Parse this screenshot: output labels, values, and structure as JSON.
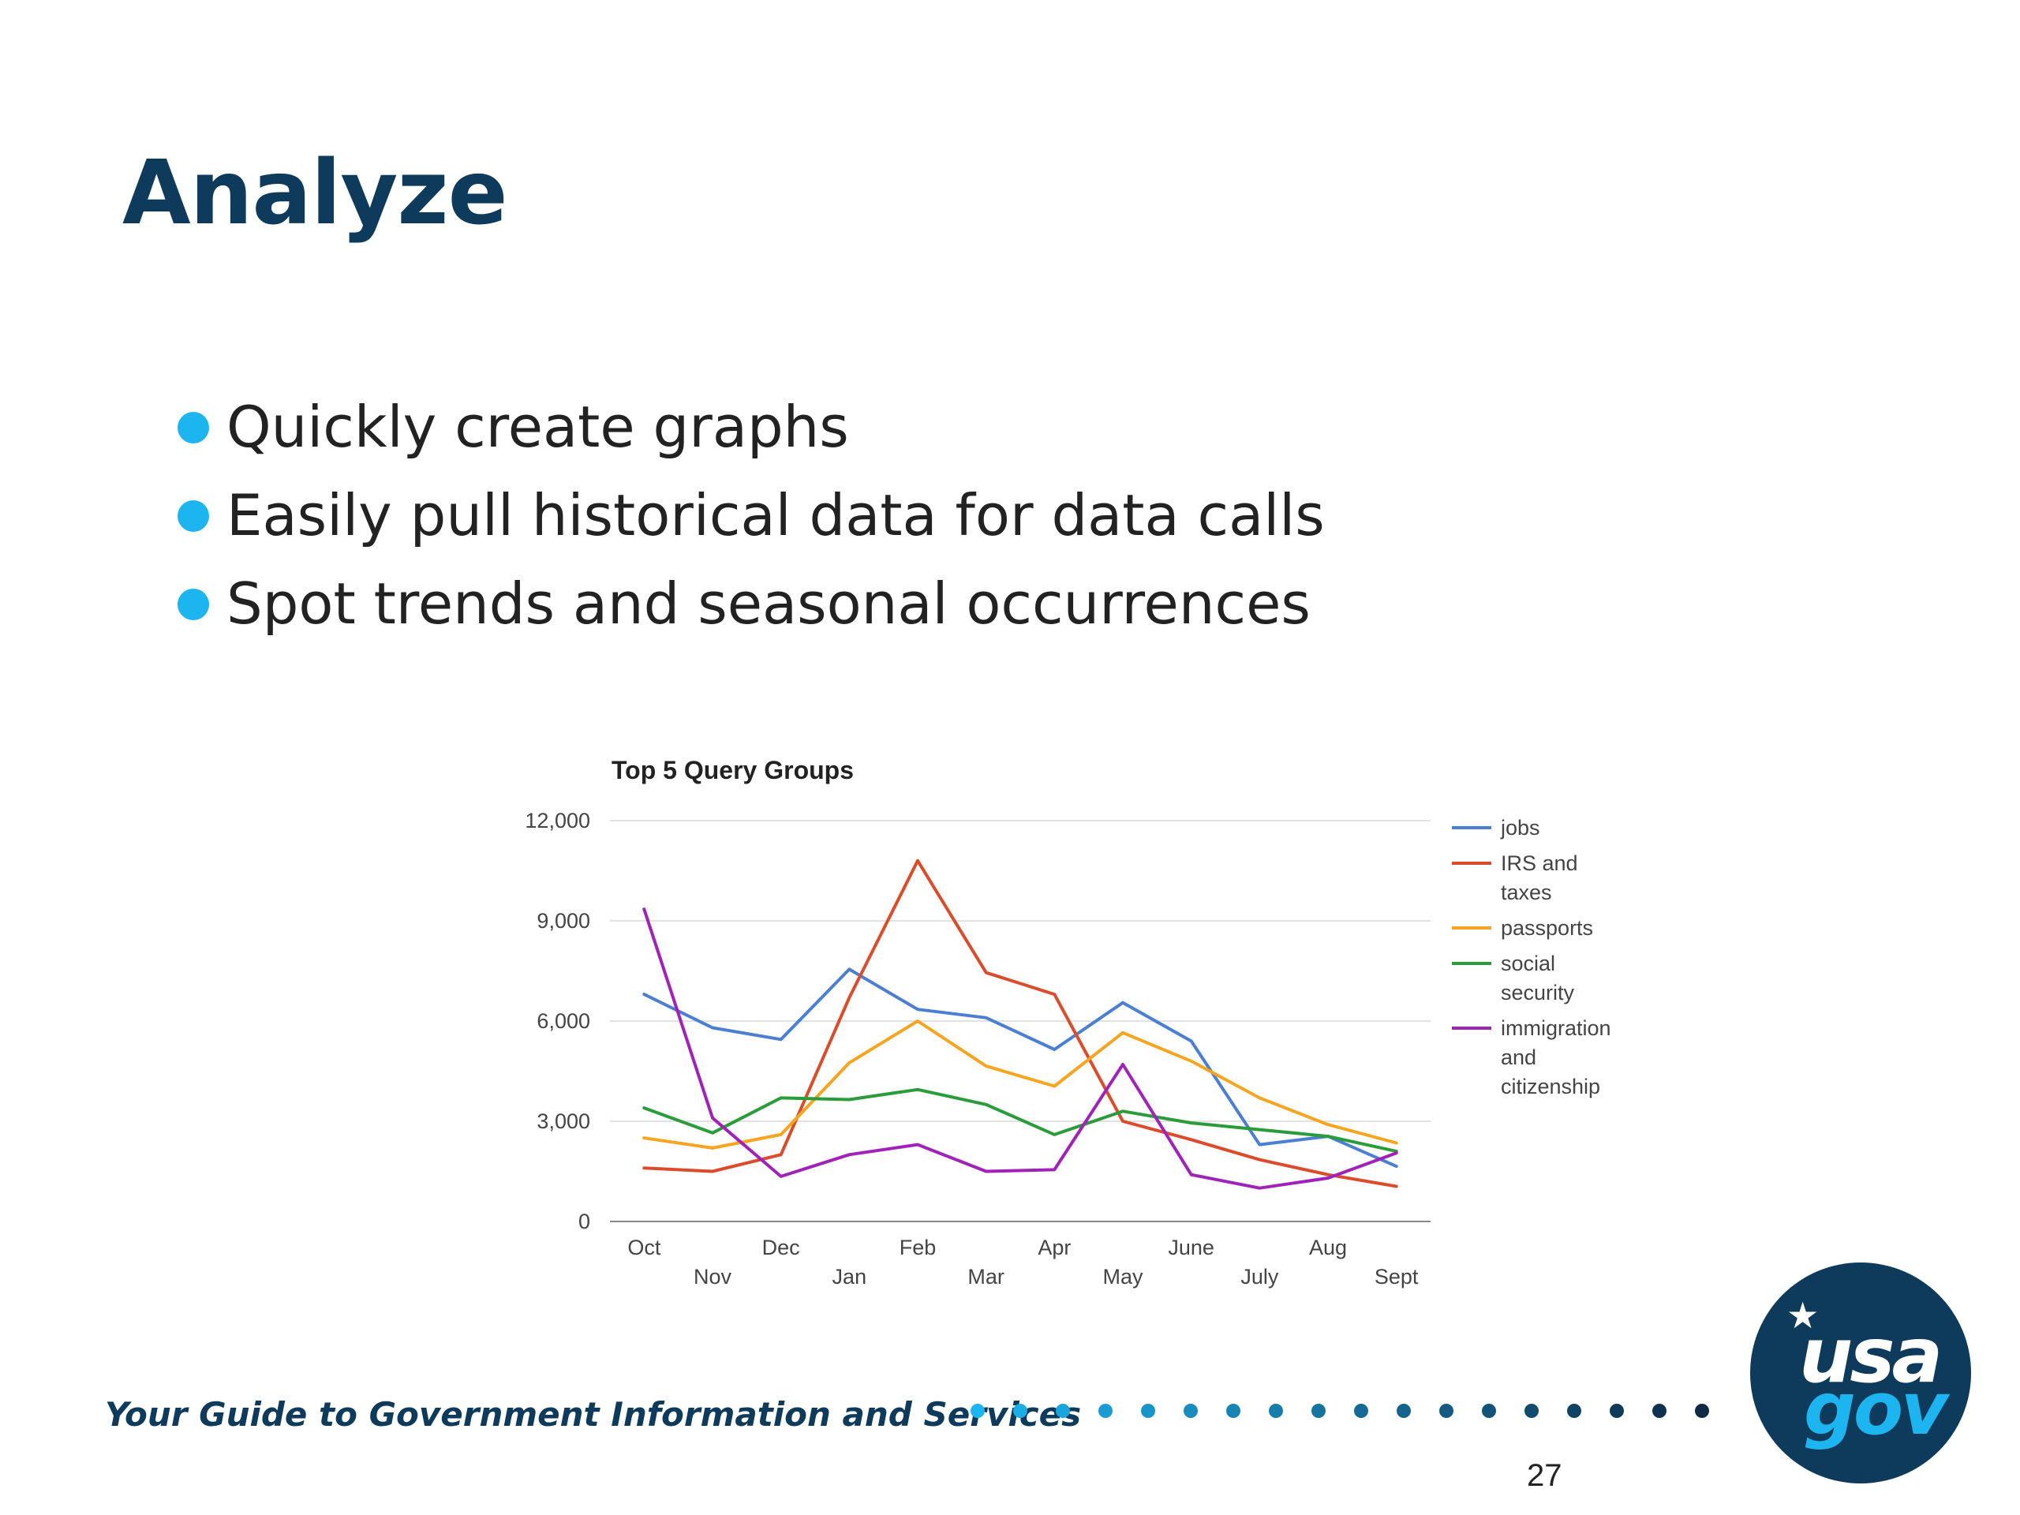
{
  "slide": {
    "title": "Analyze",
    "bullets": [
      "Quickly create graphs",
      "Easily pull historical data for data calls",
      "Spot trends and seasonal occurrences"
    ],
    "accent_color": "#1cb5f0",
    "title_color": "#0e3a5c"
  },
  "chart_data": {
    "type": "line",
    "title": "Top 5 Query Groups",
    "xlabel": "",
    "ylabel": "",
    "categories": [
      "Oct",
      "Nov",
      "Dec",
      "Jan",
      "Feb",
      "Mar",
      "Apr",
      "May",
      "June",
      "July",
      "Aug",
      "Sept"
    ],
    "ylim": [
      0,
      12000
    ],
    "yticks": [
      0,
      3000,
      6000,
      9000,
      12000
    ],
    "ytick_labels": [
      "0",
      "3,000",
      "6,000",
      "9,000",
      "12,000"
    ],
    "grid": true,
    "legend_position": "right",
    "series": [
      {
        "name": "jobs",
        "color": "#4a7fd4",
        "values": [
          6800,
          5800,
          5450,
          7550,
          6350,
          6100,
          5150,
          6550,
          5400,
          2300,
          2550,
          1650
        ]
      },
      {
        "name": "IRS and taxes",
        "color": "#dc4b2a",
        "values": [
          1600,
          1500,
          2000,
          6700,
          10800,
          7450,
          6800,
          3000,
          2450,
          1850,
          1400,
          1050
        ]
      },
      {
        "name": "passports",
        "color": "#f7a520",
        "values": [
          2500,
          2200,
          2600,
          4750,
          6000,
          4650,
          4050,
          5650,
          4800,
          3700,
          2900,
          2350
        ]
      },
      {
        "name": "social security",
        "color": "#2a9c3a",
        "values": [
          3400,
          2650,
          3700,
          3650,
          3950,
          3500,
          2600,
          3300,
          2950,
          2750,
          2550,
          2100
        ]
      },
      {
        "name": "immigration and citizenship",
        "color": "#a022b8",
        "values": [
          9350,
          3100,
          1350,
          2000,
          2300,
          1500,
          1550,
          4700,
          1400,
          1000,
          1300,
          2050
        ]
      }
    ],
    "legend_lines": [
      [
        "jobs"
      ],
      [
        "IRS and",
        "taxes"
      ],
      [
        "passports"
      ],
      [
        "social",
        "security"
      ],
      [
        "immigration",
        "and",
        "citizenship"
      ]
    ]
  },
  "footer": {
    "tagline": "Your Guide to Government Information and Services",
    "logo_top": "usa",
    "logo_bottom": "gov",
    "page_number": "27"
  }
}
